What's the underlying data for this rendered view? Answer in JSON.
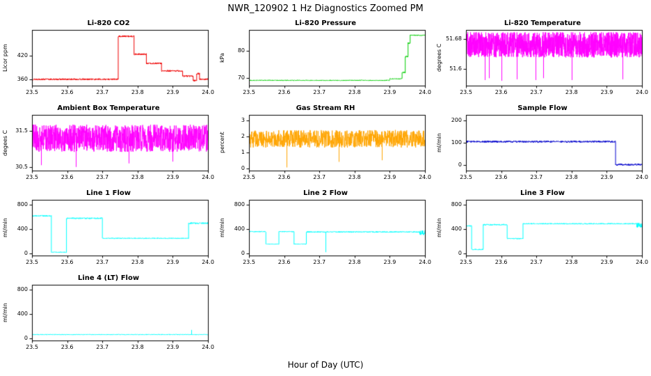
{
  "figure": {
    "title": "NWR_120902  1 Hz Diagnostics Zoomed PM",
    "xlabel": "Hour of Day (UTC)"
  },
  "chart_data": [
    {
      "type": "line",
      "title": "Li-820 CO2",
      "ylabel": "Licor ppm",
      "color": "#ee0000",
      "xlim": [
        23.5,
        24.0
      ],
      "xticks": [
        23.5,
        23.6,
        23.7,
        23.8,
        23.9,
        24.0
      ],
      "ylim": [
        344,
        484
      ],
      "yticks": [
        360,
        420
      ],
      "ytick_labels": [
        "360",
        "420"
      ],
      "grid": false,
      "segments": [
        {
          "x0": 23.5,
          "x1": 23.745,
          "y": 360,
          "noise": 2
        },
        {
          "x0": 23.745,
          "x1": 23.79,
          "y": 468,
          "noise": 2
        },
        {
          "x0": 23.79,
          "x1": 23.825,
          "y": 423,
          "noise": 2
        },
        {
          "x0": 23.825,
          "x1": 23.868,
          "y": 400,
          "noise": 2
        },
        {
          "x0": 23.868,
          "x1": 23.928,
          "y": 381,
          "noise": 2
        },
        {
          "x0": 23.928,
          "x1": 23.958,
          "y": 368,
          "noise": 2
        },
        {
          "x0": 23.958,
          "x1": 23.968,
          "y": 357,
          "noise": 2
        },
        {
          "x0": 23.968,
          "x1": 23.976,
          "y": 374,
          "noise": 2
        },
        {
          "x0": 23.976,
          "x1": 24.0,
          "y": 360,
          "noise": 2
        }
      ],
      "spikes": []
    },
    {
      "type": "line",
      "title": "Li-820 Pressure",
      "ylabel": "kPa",
      "color": "#00cd00",
      "xlim": [
        23.5,
        24.0
      ],
      "xticks": [
        23.5,
        23.6,
        23.7,
        23.8,
        23.9,
        24.0
      ],
      "ylim": [
        67,
        88
      ],
      "yticks": [
        70,
        80
      ],
      "ytick_labels": [
        "70",
        "80"
      ],
      "grid": false,
      "segments": [
        {
          "x0": 23.5,
          "x1": 23.9,
          "y": 69,
          "noise": 0.15
        },
        {
          "x0": 23.9,
          "x1": 23.935,
          "y": 69.6,
          "noise": 0.15
        },
        {
          "x0": 23.935,
          "x1": 23.944,
          "y": 72,
          "noise": 0.3
        },
        {
          "x0": 23.944,
          "x1": 23.952,
          "y": 78,
          "noise": 0.3
        },
        {
          "x0": 23.952,
          "x1": 23.958,
          "y": 83,
          "noise": 0.3
        },
        {
          "x0": 23.958,
          "x1": 24.0,
          "y": 86,
          "noise": 0.2
        }
      ],
      "spikes": []
    },
    {
      "type": "line",
      "title": "Li-820 Temperature",
      "ylabel": "degrees C",
      "color": "#ff00ff",
      "xlim": [
        23.5,
        24.0
      ],
      "xticks": [
        23.5,
        23.6,
        23.7,
        23.8,
        23.9,
        24.0
      ],
      "ylim": [
        51.555,
        51.705
      ],
      "yticks": [
        51.6,
        51.68
      ],
      "ytick_labels": [
        "51.6",
        "51.68"
      ],
      "grid": false,
      "dt": 0.00035,
      "segments": [
        {
          "x0": 23.5,
          "x1": 24.0,
          "y": 51.665,
          "noise": 0.034
        }
      ],
      "spikes": [
        {
          "x": 23.553,
          "y": 51.57
        },
        {
          "x": 23.565,
          "y": 51.575
        },
        {
          "x": 23.6,
          "y": 51.568
        },
        {
          "x": 23.645,
          "y": 51.572
        },
        {
          "x": 23.698,
          "y": 51.57
        },
        {
          "x": 23.72,
          "y": 51.575
        },
        {
          "x": 23.8,
          "y": 51.57
        },
        {
          "x": 23.945,
          "y": 51.572
        }
      ]
    },
    {
      "type": "line",
      "title": "Ambient Box Temperature",
      "ylabel": "degees C",
      "color": "#ff00ff",
      "xlim": [
        23.5,
        24.0
      ],
      "xticks": [
        23.5,
        23.6,
        23.7,
        23.8,
        23.9,
        24.0
      ],
      "ylim": [
        30.4,
        31.95
      ],
      "yticks": [
        30.5,
        31.5
      ],
      "ytick_labels": [
        "30.5",
        "31.5"
      ],
      "grid": false,
      "dt": 0.0005,
      "segments": [
        {
          "x0": 23.5,
          "x1": 24.0,
          "y": 31.3,
          "noise": 0.38
        }
      ],
      "spikes": [
        {
          "x": 23.525,
          "y": 30.55
        },
        {
          "x": 23.625,
          "y": 30.5
        },
        {
          "x": 23.775,
          "y": 30.6
        },
        {
          "x": 23.9,
          "y": 30.65
        }
      ]
    },
    {
      "type": "scatter",
      "title": "Gas Stream RH",
      "ylabel": "percent",
      "color": "#ffa500",
      "xlim": [
        23.5,
        24.0
      ],
      "xticks": [
        23.5,
        23.6,
        23.7,
        23.8,
        23.9,
        24.0
      ],
      "ylim": [
        -0.15,
        3.35
      ],
      "yticks": [
        0,
        1,
        2,
        3
      ],
      "ytick_labels": [
        "0",
        "1",
        "2",
        "3"
      ],
      "grid": false,
      "dt": 0.0006,
      "segments": [
        {
          "x0": 23.5,
          "x1": 24.0,
          "y": 1.85,
          "noise": 0.55
        }
      ],
      "spikes": [
        {
          "x": 23.607,
          "y": 0.05
        },
        {
          "x": 23.755,
          "y": 0.4
        },
        {
          "x": 23.877,
          "y": 0.5
        }
      ]
    },
    {
      "type": "line",
      "title": "Sample Flow",
      "ylabel": "ml/min",
      "color": "#0000cc",
      "xlim": [
        23.5,
        24.0
      ],
      "xticks": [
        23.5,
        23.6,
        23.7,
        23.8,
        23.9,
        24.0
      ],
      "ylim": [
        -25,
        225
      ],
      "yticks": [
        0,
        100,
        200
      ],
      "ytick_labels": [
        "0",
        "100",
        "200"
      ],
      "grid": false,
      "segments": [
        {
          "x0": 23.5,
          "x1": 23.925,
          "y": 105,
          "noise": 4
        },
        {
          "x0": 23.925,
          "x1": 24.0,
          "y": 2,
          "noise": 4
        }
      ],
      "spikes": []
    },
    {
      "type": "line",
      "title": "Line 1 Flow",
      "ylabel": "ml/min",
      "color": "#00ffff",
      "xlim": [
        23.5,
        24.0
      ],
      "xticks": [
        23.5,
        23.6,
        23.7,
        23.8,
        23.9,
        24.0
      ],
      "ylim": [
        -40,
        880
      ],
      "yticks": [
        0,
        400,
        800
      ],
      "ytick_labels": [
        "0",
        "400",
        "800"
      ],
      "grid": false,
      "segments": [
        {
          "x0": 23.5,
          "x1": 23.555,
          "y": 615,
          "noise": 10
        },
        {
          "x0": 23.555,
          "x1": 23.598,
          "y": 15,
          "noise": 6
        },
        {
          "x0": 23.598,
          "x1": 23.7,
          "y": 575,
          "noise": 10
        },
        {
          "x0": 23.7,
          "x1": 23.945,
          "y": 245,
          "noise": 7
        },
        {
          "x0": 23.945,
          "x1": 24.0,
          "y": 495,
          "noise": 12
        }
      ],
      "spikes": []
    },
    {
      "type": "line",
      "title": "Line 2 Flow",
      "ylabel": "ml/min",
      "color": "#00ffff",
      "xlim": [
        23.5,
        24.0
      ],
      "xticks": [
        23.5,
        23.6,
        23.7,
        23.8,
        23.9,
        24.0
      ],
      "ylim": [
        -40,
        880
      ],
      "yticks": [
        0,
        400,
        800
      ],
      "ytick_labels": [
        "0",
        "400",
        "800"
      ],
      "grid": false,
      "segments": [
        {
          "x0": 23.5,
          "x1": 23.548,
          "y": 355,
          "noise": 8
        },
        {
          "x0": 23.548,
          "x1": 23.585,
          "y": 150,
          "noise": 6
        },
        {
          "x0": 23.585,
          "x1": 23.628,
          "y": 355,
          "noise": 8
        },
        {
          "x0": 23.628,
          "x1": 23.663,
          "y": 150,
          "noise": 6
        },
        {
          "x0": 23.663,
          "x1": 23.985,
          "y": 350,
          "noise": 9
        },
        {
          "x0": 23.985,
          "x1": 24.0,
          "y": 335,
          "noise": 40
        }
      ],
      "spikes": [
        {
          "x": 23.717,
          "y": 15
        }
      ]
    },
    {
      "type": "line",
      "title": "Line 3 Flow",
      "ylabel": "ml/min",
      "color": "#00ffff",
      "xlim": [
        23.5,
        24.0
      ],
      "xticks": [
        23.5,
        23.6,
        23.7,
        23.8,
        23.9,
        24.0
      ],
      "ylim": [
        -40,
        880
      ],
      "yticks": [
        0,
        400,
        800
      ],
      "ytick_labels": [
        "0",
        "400",
        "800"
      ],
      "grid": false,
      "segments": [
        {
          "x0": 23.5,
          "x1": 23.516,
          "y": 450,
          "noise": 10
        },
        {
          "x0": 23.516,
          "x1": 23.549,
          "y": 60,
          "noise": 8
        },
        {
          "x0": 23.549,
          "x1": 23.617,
          "y": 470,
          "noise": 10
        },
        {
          "x0": 23.617,
          "x1": 23.662,
          "y": 240,
          "noise": 8
        },
        {
          "x0": 23.662,
          "x1": 23.985,
          "y": 485,
          "noise": 9
        },
        {
          "x0": 23.985,
          "x1": 24.0,
          "y": 460,
          "noise": 40
        }
      ],
      "spikes": []
    },
    {
      "type": "line",
      "title": "Line 4 (LT) Flow",
      "ylabel": "ml/min",
      "color": "#00ffff",
      "xlim": [
        23.5,
        24.0
      ],
      "xticks": [
        23.5,
        23.6,
        23.7,
        23.8,
        23.9,
        24.0
      ],
      "ylim": [
        -40,
        880
      ],
      "yticks": [
        0,
        400,
        800
      ],
      "ytick_labels": [
        "0",
        "400",
        "800"
      ],
      "grid": false,
      "segments": [
        {
          "x0": 23.5,
          "x1": 24.0,
          "y": 58,
          "noise": 6
        }
      ],
      "spikes": [
        {
          "x": 23.953,
          "y": 135
        }
      ]
    }
  ]
}
